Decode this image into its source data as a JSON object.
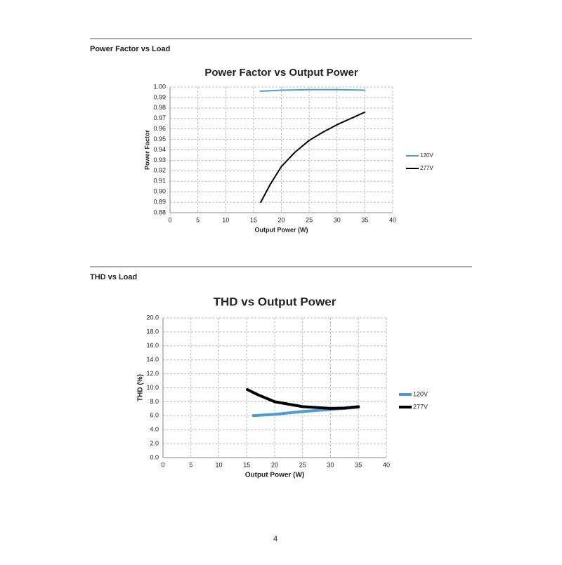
{
  "sections": [
    {
      "heading": "Power Factor vs Load"
    },
    {
      "heading": "THD vs Load"
    }
  ],
  "page_number": "4",
  "chart_data": [
    {
      "type": "line",
      "title": "Power Factor vs Output Power",
      "x_label": "Output Power (W)",
      "y_label": "Power Factor",
      "xlim": [
        0,
        40
      ],
      "xticks": [
        0,
        5,
        10,
        15,
        20,
        25,
        30,
        35,
        40
      ],
      "ylim": [
        0.88,
        1.0
      ],
      "yticks": [
        0.88,
        0.89,
        {
          "value": 0.9,
          "label": "0.90"
        },
        0.91,
        0.92,
        0.93,
        0.94,
        0.95,
        0.96,
        0.97,
        0.98,
        0.99,
        {
          "value": 1.0,
          "label": "1.00"
        }
      ],
      "grid": true,
      "legend": "right",
      "series": [
        {
          "name": "120V",
          "color": "#4a9bd6",
          "x": [
            16.2,
            20,
            25,
            30,
            35
          ],
          "values": [
            0.996,
            0.997,
            0.9975,
            0.9975,
            0.997
          ]
        },
        {
          "name": "277V",
          "color": "#000000",
          "x": [
            16.3,
            18,
            20,
            22.5,
            25,
            27.5,
            30,
            32.5,
            35
          ],
          "values": [
            0.89,
            0.907,
            0.924,
            0.938,
            0.949,
            0.957,
            0.964,
            0.97,
            0.976
          ]
        }
      ]
    },
    {
      "type": "line",
      "title": "THD vs Output Power",
      "x_label": "Output Power (W)",
      "y_label": "THD (%)",
      "xlim": [
        0,
        40
      ],
      "xticks": [
        0,
        5,
        10,
        15,
        20,
        25,
        30,
        35,
        40
      ],
      "ylim": [
        0,
        20
      ],
      "yticks": [
        {
          "value": 0,
          "label": "0.0"
        },
        {
          "value": 2,
          "label": "2.0"
        },
        {
          "value": 4,
          "label": "4.0"
        },
        {
          "value": 6,
          "label": "6.0"
        },
        {
          "value": 8,
          "label": "8.0"
        },
        {
          "value": 10,
          "label": "10.0"
        },
        {
          "value": 12,
          "label": "12.0"
        },
        {
          "value": 14,
          "label": "14.0"
        },
        {
          "value": 16,
          "label": "16.0"
        },
        {
          "value": 18,
          "label": "18.0"
        },
        {
          "value": 20,
          "label": "20.0"
        }
      ],
      "grid": true,
      "legend": "right",
      "series": [
        {
          "name": "120V",
          "color": "#4a9bd6",
          "x": [
            16.2,
            20,
            25,
            30,
            35
          ],
          "values": [
            6.0,
            6.2,
            6.6,
            6.9,
            7.2
          ]
        },
        {
          "name": "277V",
          "color": "#000000",
          "x": [
            15.1,
            17,
            20,
            25,
            30,
            32.5,
            35
          ],
          "values": [
            9.75,
            9.0,
            8.0,
            7.3,
            7.05,
            7.1,
            7.3
          ]
        }
      ]
    }
  ]
}
